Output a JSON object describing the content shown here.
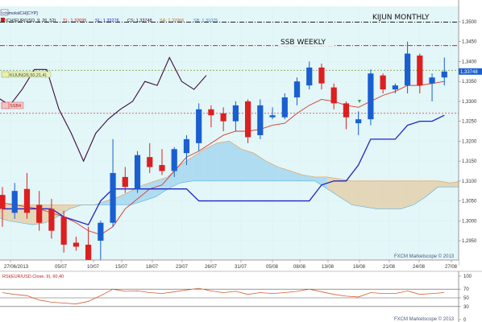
{
  "window": {
    "caption": "Ichimoku",
    "instrument_tab": "ICH[CYP]"
  },
  "legend": {
    "series": "ICH(EUR/USD, 9, 26, 52)",
    "tl": "TL: 1,32695",
    "sl": "SL: 1,33276",
    "cs": "CS: 1,33748",
    "sa": "SA: 1,32966",
    "sb": "SB: 1,31025"
  },
  "annotations": {
    "kijun_monthly": "KIJUN MONTHLY",
    "ssb_weekly": "SSB WEEKLY",
    "kijun_weekly_tag": "KIJUN(26,50,21,4)",
    "ssb_monthly_tag": "SSB4"
  },
  "price_axis": {
    "ticks": [
      "1,3500",
      "1,3450",
      "1,3400",
      "1,3350",
      "1,3300",
      "1,3250",
      "1,3200",
      "1,3150",
      "1,3100",
      "1,3050",
      "1,3000",
      "1,2950"
    ],
    "current_price_label": "1,33748"
  },
  "date_axis": {
    "labels": [
      "27/06/2013",
      "05/07",
      "10/07",
      "15/07",
      "18/07",
      "23/07",
      "26/07",
      "31/07",
      "05/08",
      "08/08",
      "13/08",
      "16/08",
      "21/08",
      "24/08",
      "27/08"
    ]
  },
  "rsi_panel": {
    "legend": "RSI(EUR/USD.Close, 9), 60,40",
    "ticks": [
      "100",
      "70",
      "50",
      "30",
      "0"
    ]
  },
  "footer": {
    "main": "FXCM Marketscope © 2013",
    "rsi": "FXCM Marketscope © 2013"
  },
  "colors": {
    "plot_bg": "#e3f6f8",
    "bull": "#1a5fd0",
    "bear": "#dd1f1f",
    "tenkan": "#d23a2a",
    "kijun": "#1d25c6",
    "chikou": "#3c0c3c",
    "cloud_bull": "#a9d9ef",
    "cloud_bear": "#e3d3b0",
    "kijun_monthly_line": "#222222",
    "ssb_weekly_line": "#d81f1f"
  },
  "chart_data": {
    "type": "candlestick",
    "pair": "EUR/USD",
    "indicator": "Ichimoku (9, 26, 52)",
    "ylim": [
      1.2915,
      1.3545
    ],
    "ohlc": [
      {
        "o": 1.3065,
        "h": 1.3085,
        "l": 1.2985,
        "c": 1.303
      },
      {
        "o": 1.302,
        "h": 1.3095,
        "l": 1.3005,
        "c": 1.3075
      },
      {
        "o": 1.308,
        "h": 1.312,
        "l": 1.3005,
        "c": 1.302
      },
      {
        "o": 1.304,
        "h": 1.3075,
        "l": 1.2975,
        "c": 1.2995
      },
      {
        "o": 1.303,
        "h": 1.3055,
        "l": 1.2955,
        "c": 1.2975
      },
      {
        "o": 1.301,
        "h": 1.3025,
        "l": 1.292,
        "c": 1.294
      },
      {
        "o": 1.2945,
        "h": 1.296,
        "l": 1.2925,
        "c": 1.2935
      },
      {
        "o": 1.294,
        "h": 1.2985,
        "l": 1.283,
        "c": 1.288
      },
      {
        "o": 1.295,
        "h": 1.3,
        "l": 1.2845,
        "c": 1.2995
      },
      {
        "o": 1.2995,
        "h": 1.3205,
        "l": 1.2985,
        "c": 1.312
      },
      {
        "o": 1.311,
        "h": 1.3135,
        "l": 1.307,
        "c": 1.3085
      },
      {
        "o": 1.308,
        "h": 1.3175,
        "l": 1.307,
        "c": 1.3165
      },
      {
        "o": 1.316,
        "h": 1.3195,
        "l": 1.312,
        "c": 1.3135
      },
      {
        "o": 1.314,
        "h": 1.318,
        "l": 1.3115,
        "c": 1.3125
      },
      {
        "o": 1.3125,
        "h": 1.3185,
        "l": 1.311,
        "c": 1.318
      },
      {
        "o": 1.317,
        "h": 1.3215,
        "l": 1.314,
        "c": 1.3205
      },
      {
        "o": 1.3195,
        "h": 1.3295,
        "l": 1.3175,
        "c": 1.328
      },
      {
        "o": 1.328,
        "h": 1.329,
        "l": 1.3235,
        "c": 1.3265
      },
      {
        "o": 1.327,
        "h": 1.3285,
        "l": 1.3225,
        "c": 1.325
      },
      {
        "o": 1.325,
        "h": 1.33,
        "l": 1.3225,
        "c": 1.329
      },
      {
        "o": 1.33,
        "h": 1.3305,
        "l": 1.3195,
        "c": 1.321
      },
      {
        "o": 1.3215,
        "h": 1.3305,
        "l": 1.3205,
        "c": 1.329
      },
      {
        "o": 1.326,
        "h": 1.3285,
        "l": 1.3255,
        "c": 1.3265
      },
      {
        "o": 1.326,
        "h": 1.332,
        "l": 1.3255,
        "c": 1.331
      },
      {
        "o": 1.331,
        "h": 1.336,
        "l": 1.329,
        "c": 1.335
      },
      {
        "o": 1.334,
        "h": 1.34,
        "l": 1.333,
        "c": 1.3385
      },
      {
        "o": 1.3385,
        "h": 1.3395,
        "l": 1.333,
        "c": 1.3345
      },
      {
        "o": 1.3335,
        "h": 1.3345,
        "l": 1.328,
        "c": 1.3295
      },
      {
        "o": 1.3295,
        "h": 1.33,
        "l": 1.323,
        "c": 1.326
      },
      {
        "o": 1.3245,
        "h": 1.3275,
        "l": 1.3215,
        "c": 1.3255
      },
      {
        "o": 1.3255,
        "h": 1.338,
        "l": 1.324,
        "c": 1.337
      },
      {
        "o": 1.3365,
        "h": 1.337,
        "l": 1.332,
        "c": 1.333
      },
      {
        "o": 1.333,
        "h": 1.3345,
        "l": 1.332,
        "c": 1.334
      },
      {
        "o": 1.334,
        "h": 1.345,
        "l": 1.332,
        "c": 1.342
      },
      {
        "o": 1.3415,
        "h": 1.342,
        "l": 1.332,
        "c": 1.334
      },
      {
        "o": 1.3345,
        "h": 1.337,
        "l": 1.33,
        "c": 1.336
      },
      {
        "o": 1.336,
        "h": 1.341,
        "l": 1.334,
        "c": 1.3375
      }
    ],
    "tenkan": [
      1.3045,
      1.304,
      1.3035,
      1.303,
      1.302,
      1.301,
      1.2995,
      1.2975,
      1.2965,
      1.2985,
      1.303,
      1.3055,
      1.308,
      1.309,
      1.3125,
      1.316,
      1.3175,
      1.3195,
      1.3215,
      1.3225,
      1.3225,
      1.323,
      1.324,
      1.3245,
      1.327,
      1.329,
      1.3305,
      1.33,
      1.329,
      1.3285,
      1.33,
      1.3315,
      1.3325,
      1.334,
      1.334,
      1.3345,
      1.335
    ],
    "kijun": [
      1.303,
      1.303,
      1.303,
      1.303,
      1.303,
      1.301,
      1.3,
      1.299,
      1.305,
      1.308,
      1.308,
      1.308,
      1.308,
      1.308,
      1.308,
      1.308,
      1.305,
      1.305,
      1.305,
      1.305,
      1.305,
      1.305,
      1.305,
      1.305,
      1.305,
      1.305,
      1.309,
      1.31,
      1.31,
      1.314,
      1.3205,
      1.3205,
      1.3205,
      1.324,
      1.325,
      1.325,
      1.3265
    ],
    "kumo_upper": [
      1.304,
      1.304,
      1.304,
      1.304,
      1.304,
      1.304,
      1.304,
      1.304,
      1.304,
      1.305,
      1.306,
      1.3075,
      1.309,
      1.31,
      1.311,
      1.314,
      1.316,
      1.318,
      1.3195,
      1.32,
      1.318,
      1.317,
      1.315,
      1.3135,
      1.3125,
      1.3115,
      1.311,
      1.311,
      1.3105,
      1.31,
      1.31,
      1.31,
      1.31,
      1.31,
      1.31,
      1.31,
      1.31,
      1.3095,
      1.31,
      1.3115
    ],
    "kumo_lower": [
      1.301,
      1.3,
      1.2995,
      1.299,
      1.2995,
      1.301,
      1.303,
      1.304,
      1.304,
      1.304,
      1.304,
      1.304,
      1.305,
      1.306,
      1.308,
      1.3095,
      1.31,
      1.31,
      1.31,
      1.31,
      1.31,
      1.31,
      1.31,
      1.31,
      1.31,
      1.31,
      1.31,
      1.308,
      1.306,
      1.304,
      1.3035,
      1.303,
      1.303,
      1.303,
      1.304,
      1.306,
      1.3085,
      1.3085,
      1.3085,
      1.3085
    ],
    "chikou": [
      1.331,
      1.329,
      1.333,
      1.338,
      1.338,
      1.328,
      1.322,
      1.315,
      1.322,
      1.3255,
      1.328,
      1.33,
      1.335,
      1.334,
      1.341,
      1.335,
      1.333,
      1.3365
    ],
    "horizontal_levels": {
      "kijun_monthly": 1.3505,
      "ssb_weekly": 1.344,
      "kijun_weekly": 1.3378,
      "ssb_monthly": 1.327
    },
    "rsi": {
      "values": [
        62,
        58,
        55,
        45,
        40,
        38,
        36,
        42,
        55,
        70,
        65,
        66,
        62,
        60,
        64,
        68,
        72,
        66,
        62,
        65,
        58,
        62,
        60,
        62,
        65,
        70,
        64,
        58,
        54,
        52,
        62,
        60,
        60,
        66,
        58,
        60,
        62
      ],
      "levels": [
        70,
        50,
        30
      ],
      "ylim": [
        0,
        100
      ]
    }
  }
}
